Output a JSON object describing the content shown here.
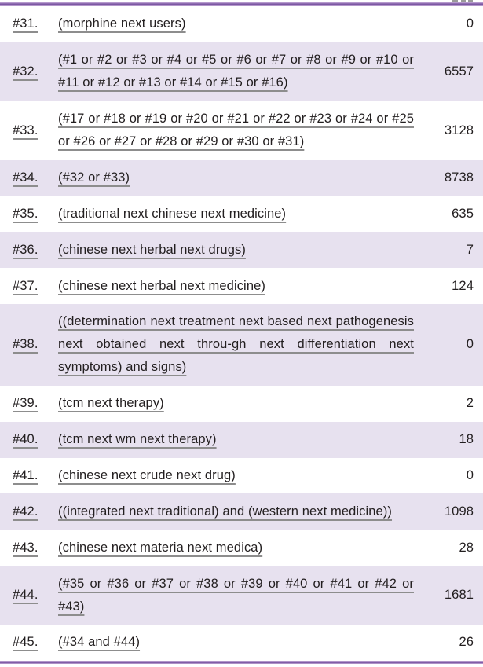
{
  "table": {
    "rows": [
      {
        "id": "#31.",
        "query": "(morphine next users)",
        "count": "0"
      },
      {
        "id": "#32.",
        "query": "(#1 or #2 or #3 or #4 or #5 or #6 or #7 or #8 or #9 or #10 or #11 or #12 or #13 or #14 or #15 or #16)",
        "count": "6557"
      },
      {
        "id": "#33.",
        "query": "(#17 or #18 or #19 or #20 or #21 or #22 or #23 or #24 or #25 or #26 or #27 or #28 or #29 or #30 or #31)",
        "count": "3128"
      },
      {
        "id": "#34.",
        "query": "(#32 or #33)",
        "count": "8738"
      },
      {
        "id": "#35.",
        "query": "(traditional next chinese next medicine)",
        "count": "635"
      },
      {
        "id": "#36.",
        "query": "(chinese next herbal next drugs)",
        "count": "7"
      },
      {
        "id": "#37.",
        "query": "(chinese next herbal next medicine)",
        "count": "124"
      },
      {
        "id": "#38.",
        "query": "((determination next treatment next based next pathogenesis next obtained next throu-gh next differentiation next symptoms) and signs)",
        "count": "0"
      },
      {
        "id": "#39.",
        "query": "(tcm next therapy)",
        "count": "2"
      },
      {
        "id": "#40.",
        "query": "(tcm next wm next therapy)",
        "count": "18"
      },
      {
        "id": "#41.",
        "query": "(chinese next crude next drug)",
        "count": "0"
      },
      {
        "id": "#42.",
        "query": "((integrated next traditional) and (western next medicine))",
        "count": "1098"
      },
      {
        "id": "#43.",
        "query": "(chinese next materia next medica)",
        "count": "28"
      },
      {
        "id": "#44.",
        "query": "(#35 or #36 or #37 or #38 or #39 or #40 or #41 or #42 or #43)",
        "count": "1681"
      },
      {
        "id": "#45.",
        "query": "(#34 and #44)",
        "count": "26"
      }
    ]
  },
  "colors": {
    "stripe": "#e7e1ef",
    "rule_dark": "#7d58a4",
    "rule_light": "#c9b0da",
    "underline": "#8d8d8d",
    "text": "#221e1f"
  }
}
